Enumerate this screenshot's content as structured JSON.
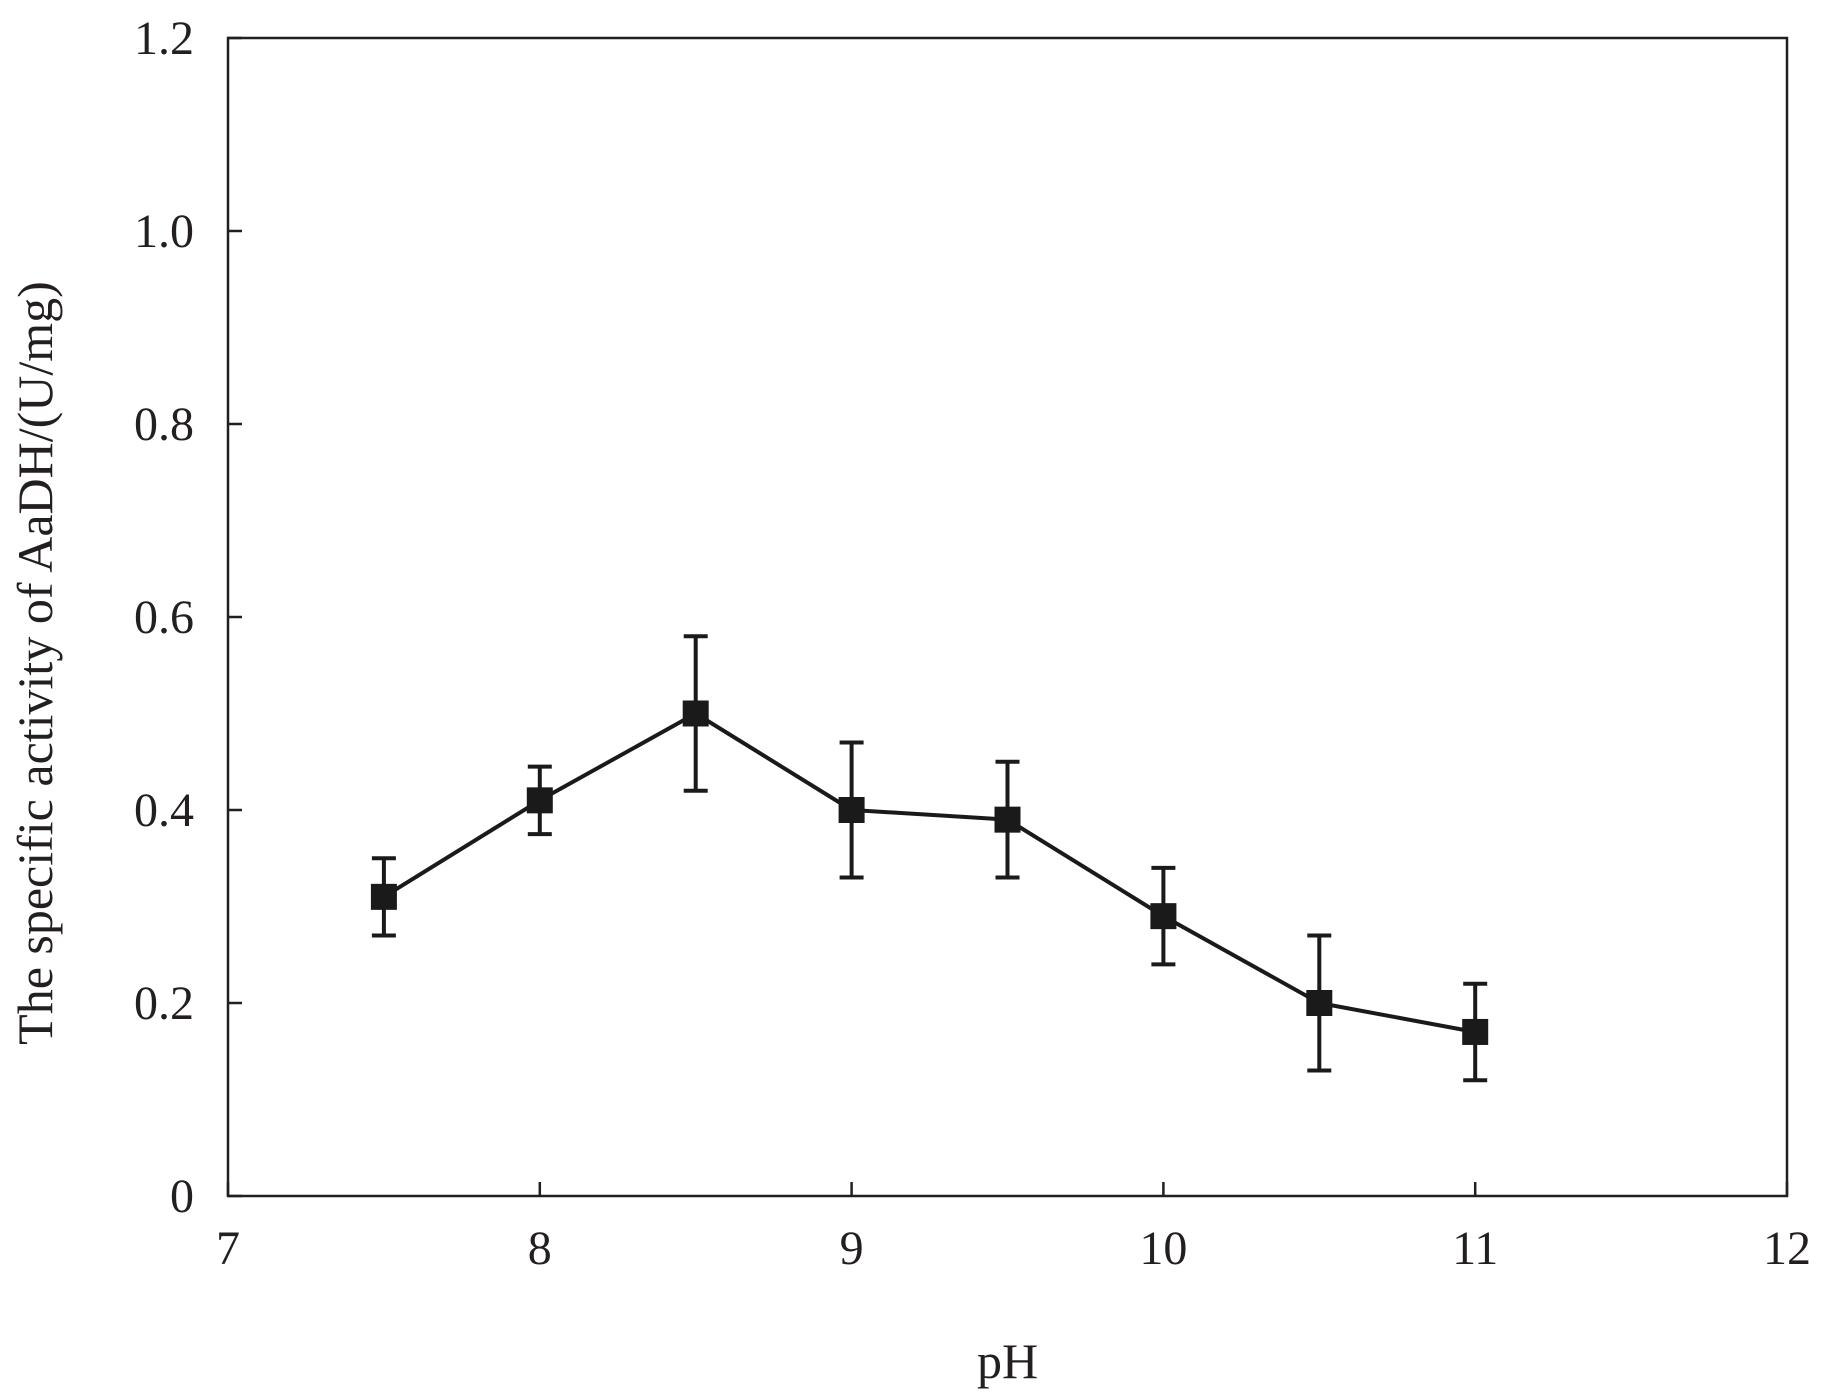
{
  "chart_data": {
    "type": "line",
    "xlabel": "pH",
    "ylabel": "The specific activity of AaDH/(U/mg)",
    "xlim": [
      7,
      12
    ],
    "ylim": [
      0,
      1.2
    ],
    "xticks": [
      "7",
      "8",
      "9",
      "10",
      "11",
      "12"
    ],
    "yticks": [
      "0",
      "0.2",
      "0.4",
      "0.6",
      "0.8",
      "1.0",
      "1.2"
    ],
    "x": [
      7.5,
      8.0,
      8.5,
      9.0,
      9.5,
      10.0,
      10.5,
      11.0
    ],
    "series": [
      {
        "values": [
          0.31,
          0.41,
          0.5,
          0.4,
          0.39,
          0.29,
          0.2,
          0.17
        ],
        "error_high": [
          0.35,
          0.445,
          0.58,
          0.47,
          0.45,
          0.34,
          0.27,
          0.22
        ],
        "error_low": [
          0.27,
          0.375,
          0.42,
          0.33,
          0.33,
          0.24,
          0.13,
          0.12
        ],
        "marker": "square",
        "color": "#1a1a1a"
      }
    ],
    "grid": false,
    "legend": "none"
  }
}
